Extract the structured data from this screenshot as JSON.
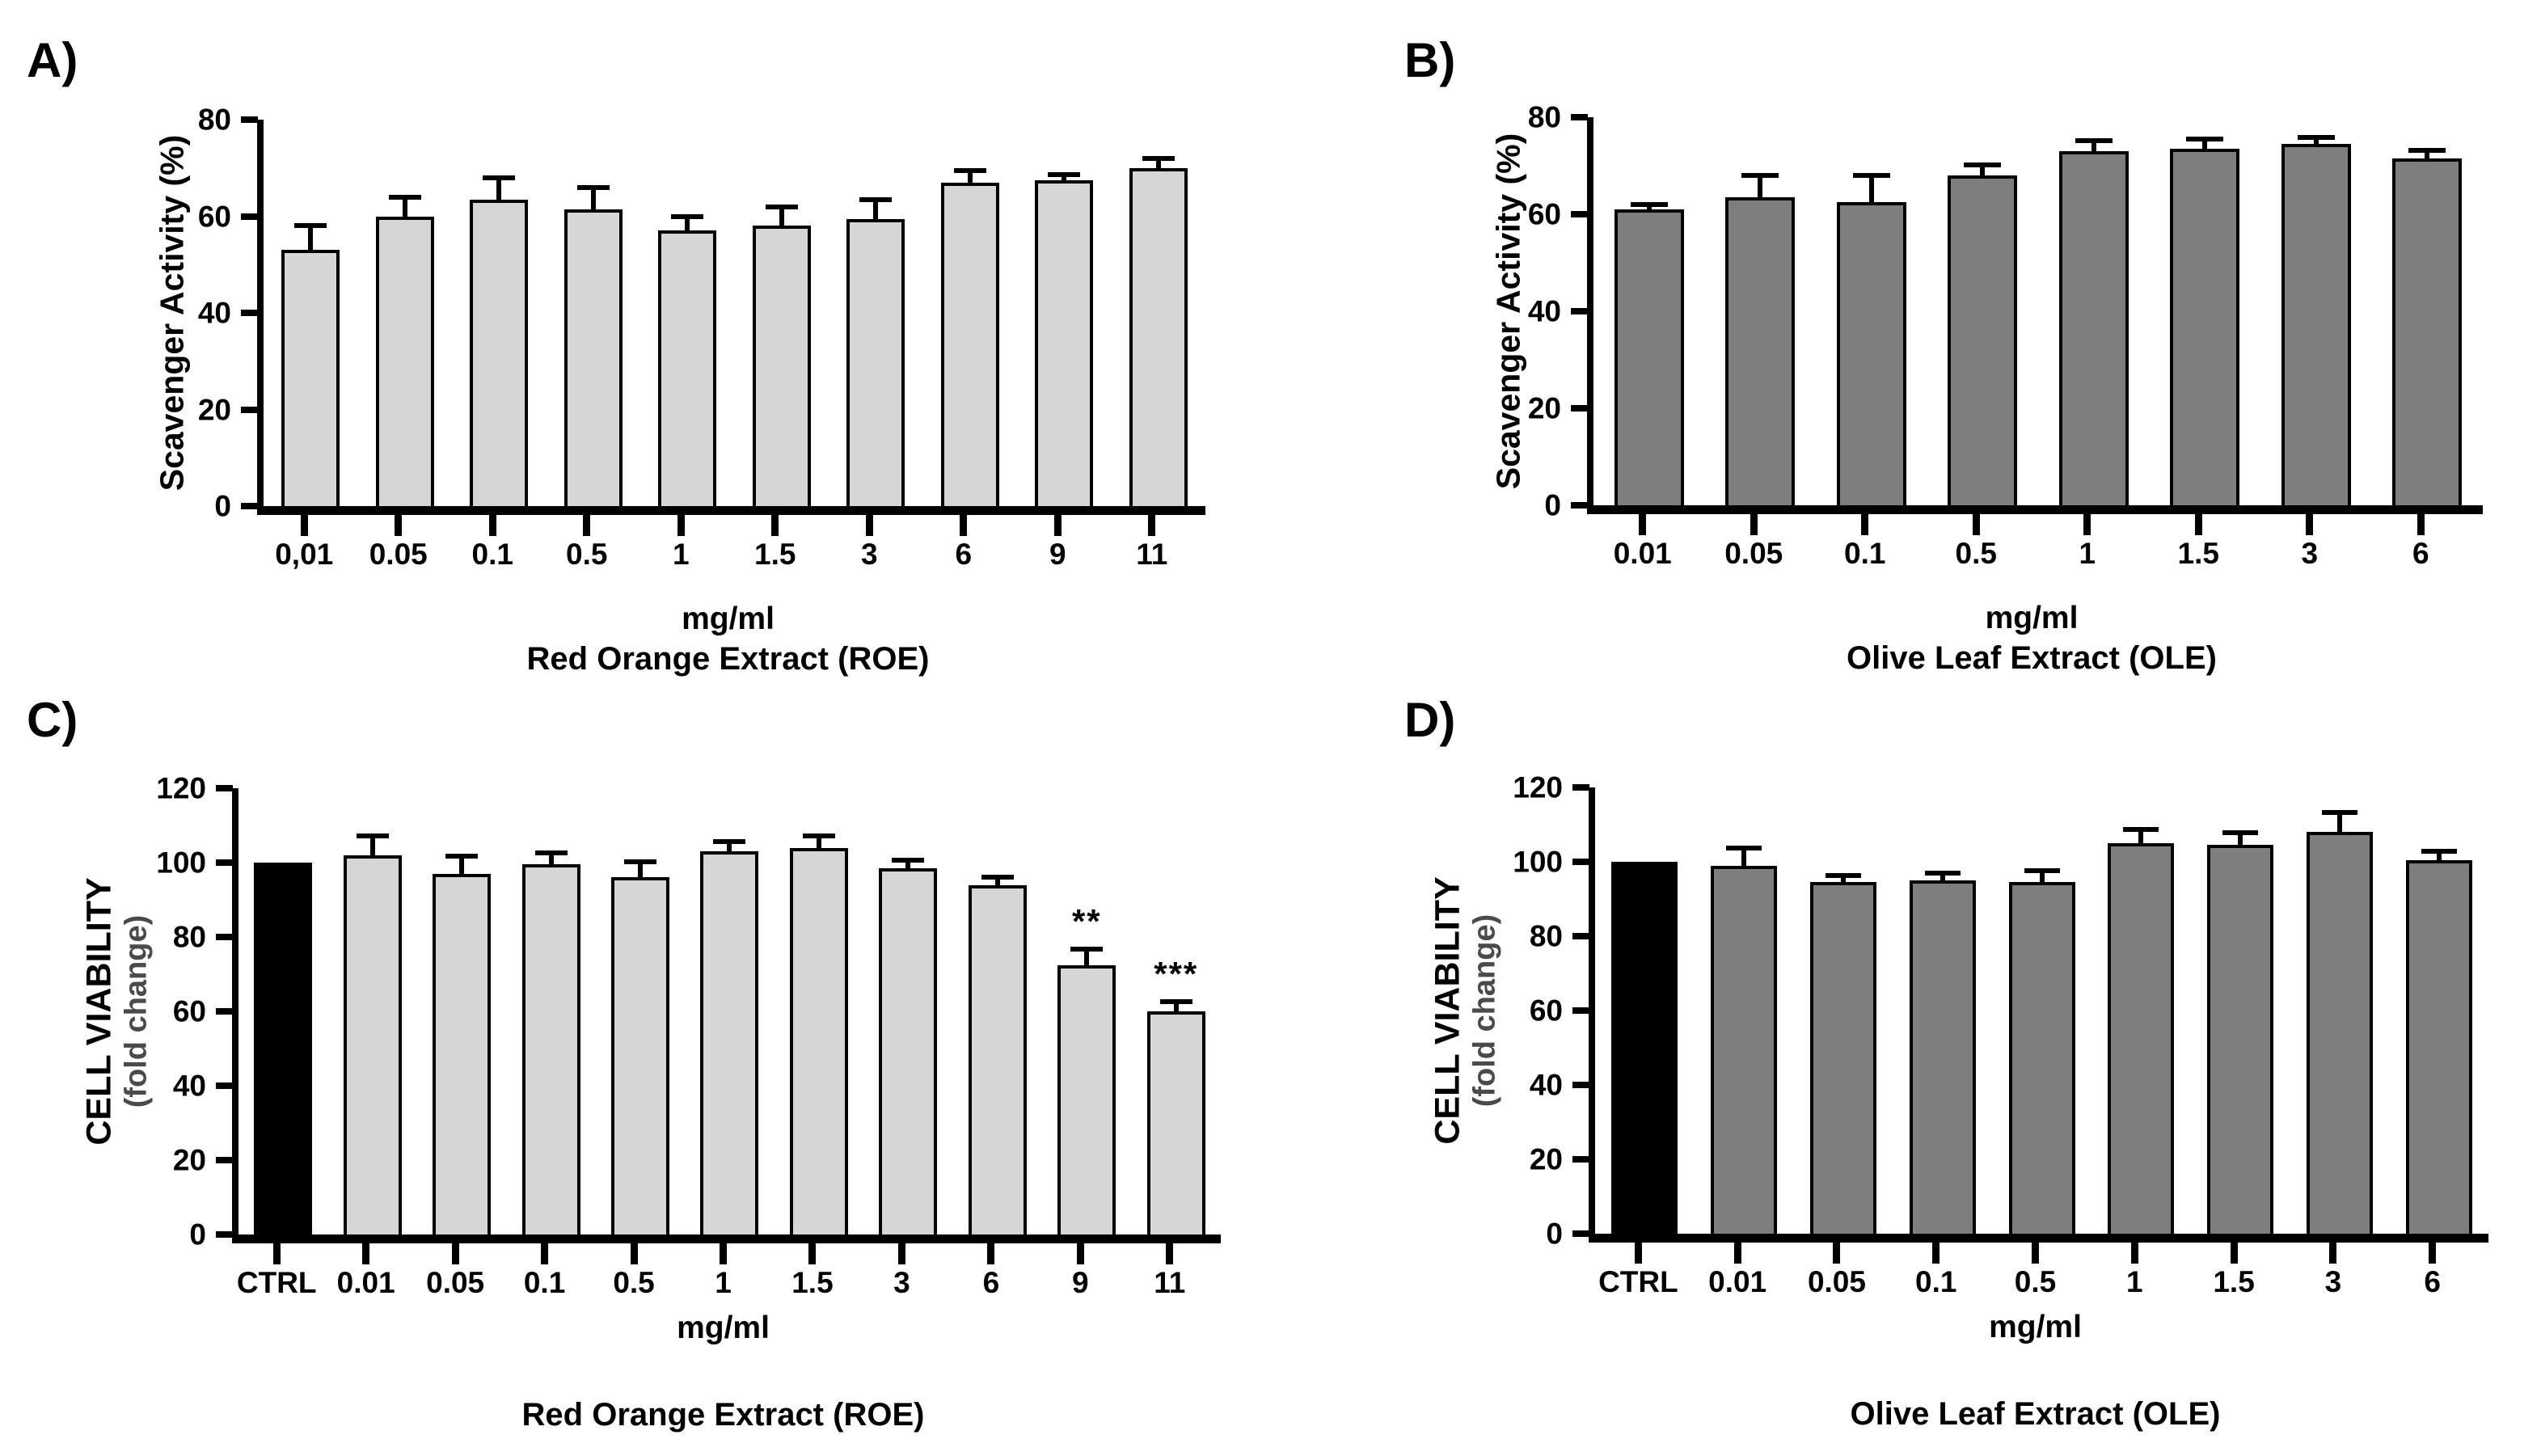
{
  "figure": {
    "background": "#ffffff",
    "palette": {
      "light_gray_bar": "#d6d6d6",
      "dark_gray_bar": "#7e7e7e",
      "control_bar": "#000000",
      "axis": "#000000",
      "fold_change_text": "#4a4a4a"
    }
  },
  "chart_data": [
    {
      "type": "bar",
      "letter": "A)",
      "ylabel": "Scavenger Activity (%)",
      "xlabel": "mg/ml",
      "title": "Red Orange Extract (ROE)",
      "ylim": [
        0,
        80
      ],
      "yticks": [
        0,
        20,
        40,
        60,
        80
      ],
      "grid": false,
      "legend": "none",
      "categories": [
        "0,01",
        "0.05",
        "0.1",
        "0.5",
        "1",
        "1.5",
        "3",
        "6",
        "9",
        "11"
      ],
      "values": [
        53,
        60,
        63.5,
        61.5,
        57,
        58,
        59.5,
        67,
        67.5,
        70
      ],
      "errors": [
        4.5,
        3.5,
        4,
        4,
        2.5,
        3.5,
        3.5,
        2,
        0.6,
        1.4
      ],
      "sig": [
        "",
        "",
        "",
        "",
        "",
        "",
        "",
        "",
        "",
        ""
      ],
      "colors": [
        "#d6d6d6",
        "#d6d6d6",
        "#d6d6d6",
        "#d6d6d6",
        "#d6d6d6",
        "#d6d6d6",
        "#d6d6d6",
        "#d6d6d6",
        "#d6d6d6",
        "#d6d6d6"
      ]
    },
    {
      "type": "bar",
      "letter": "B)",
      "ylabel": "Scavenger Activity (%)",
      "xlabel": "mg/ml",
      "title": "Olive Leaf Extract (OLE)",
      "ylim": [
        0,
        80
      ],
      "yticks": [
        0,
        20,
        40,
        60,
        80
      ],
      "grid": false,
      "legend": "none",
      "categories": [
        "0.01",
        "0.05",
        "0.1",
        "0.5",
        "1",
        "1.5",
        "3",
        "6"
      ],
      "values": [
        61,
        63.5,
        62.5,
        68,
        73,
        73.5,
        74.5,
        71.5
      ],
      "errors": [
        0.5,
        4,
        5,
        1.6,
        1.6,
        1.5,
        0.9,
        1.2
      ],
      "sig": [
        "",
        "",
        "",
        "",
        "",
        "",
        "",
        ""
      ],
      "colors": [
        "#7e7e7e",
        "#7e7e7e",
        "#7e7e7e",
        "#7e7e7e",
        "#7e7e7e",
        "#7e7e7e",
        "#7e7e7e",
        "#7e7e7e"
      ]
    },
    {
      "type": "bar",
      "letter": "C)",
      "ylabel_line1": "CELL VIABILITY",
      "ylabel_line2": "(fold change)",
      "xlabel": "mg/ml",
      "title": "Red Orange Extract (ROE)",
      "ylim": [
        0,
        120
      ],
      "yticks": [
        0,
        20,
        40,
        60,
        80,
        100,
        120
      ],
      "grid": false,
      "legend": "none",
      "categories": [
        "CTRL",
        "0.01",
        "0.05",
        "0.1",
        "0.5",
        "1",
        "1.5",
        "3",
        "6",
        "9",
        "11"
      ],
      "values": [
        100,
        102,
        97,
        99.5,
        96,
        103,
        104,
        98.5,
        94,
        72.5,
        60
      ],
      "errors": [
        0,
        4.5,
        4,
        2.5,
        3.5,
        2,
        2.5,
        1.5,
        1.5,
        3.5,
        2
      ],
      "sig": [
        "",
        "",
        "",
        "",
        "",
        "",
        "",
        "",
        "",
        "**",
        "***"
      ],
      "colors": [
        "#000000",
        "#d6d6d6",
        "#d6d6d6",
        "#d6d6d6",
        "#d6d6d6",
        "#d6d6d6",
        "#d6d6d6",
        "#d6d6d6",
        "#d6d6d6",
        "#d6d6d6",
        "#d6d6d6"
      ]
    },
    {
      "type": "bar",
      "letter": "D)",
      "ylabel_line1": "CELL VIABILITY",
      "ylabel_line2": "(fold change)",
      "xlabel": "mg/ml",
      "title": "Olive Leaf Extract (OLE)",
      "ylim": [
        0,
        120
      ],
      "yticks": [
        0,
        20,
        40,
        60,
        80,
        100,
        120
      ],
      "grid": false,
      "legend": "none",
      "categories": [
        "CTRL",
        "0.01",
        "0.05",
        "0.1",
        "0.5",
        "1",
        "1.5",
        "3",
        "6"
      ],
      "values": [
        100,
        99,
        94.5,
        95,
        94.5,
        105,
        104.5,
        108,
        100.5
      ],
      "errors": [
        0,
        4,
        1.2,
        1.2,
        2.4,
        3,
        2.6,
        4.6,
        1.7
      ],
      "sig": [
        "",
        "",
        "",
        "",
        "",
        "",
        "",
        "",
        ""
      ],
      "colors": [
        "#000000",
        "#7e7e7e",
        "#7e7e7e",
        "#7e7e7e",
        "#7e7e7e",
        "#7e7e7e",
        "#7e7e7e",
        "#7e7e7e",
        "#7e7e7e"
      ]
    }
  ]
}
